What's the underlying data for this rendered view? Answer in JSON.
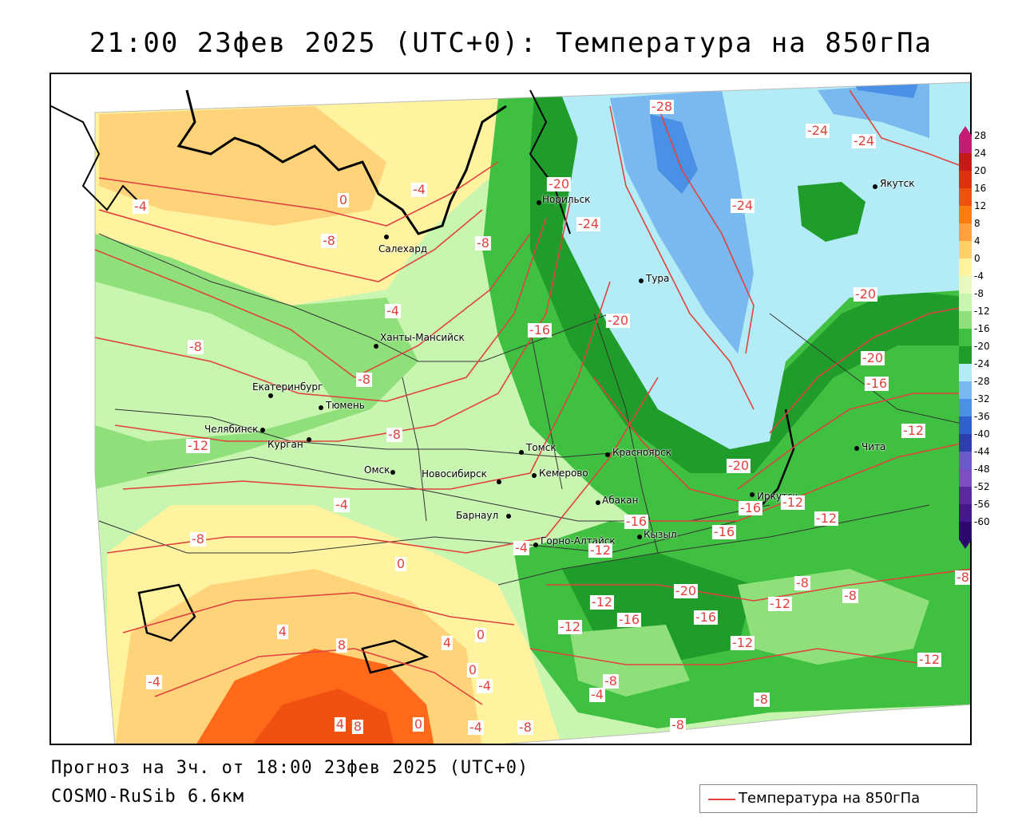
{
  "title": "21:00 23фев 2025 (UTC+0): Температура на 850гПа",
  "footer": {
    "forecast": "Прогноз на 3ч. от 18:00 23фев 2025 (UTC+0)",
    "model": "COSMO-RuSib 6.6км"
  },
  "legend": {
    "label": "Температура на 850гПа",
    "line_color": "#e0433e"
  },
  "colors": {
    "contour": "#e0433e",
    "warm_orange": "#ff6a1a",
    "warm_light": "#ffd37a",
    "neutral_yellow": "#fff3a0",
    "green_light": "#c8f5b0",
    "green_mid": "#6fd66a",
    "green_dark": "#1f9c2a",
    "cold_light": "#b3ecf7",
    "cold_mid": "#7ab8f0",
    "cold_dark": "#3a7fe0"
  },
  "scale": {
    "ticks": [
      "28",
      "24",
      "20",
      "16",
      "12",
      "8",
      "4",
      "0",
      "-4",
      "-8",
      "-12",
      "-16",
      "-20",
      "-24",
      "-28",
      "-32",
      "-36",
      "-40",
      "-44",
      "-48",
      "-52",
      "-56",
      "-60"
    ],
    "colors": [
      "#c21d70",
      "#c81818",
      "#e03010",
      "#f05010",
      "#ff7a10",
      "#ffa040",
      "#ffd06a",
      "#fff3a0",
      "#e8f9c0",
      "#c8f5b0",
      "#8fe07a",
      "#3fc040",
      "#1f9c2a",
      "#b3ecf7",
      "#7ab8f0",
      "#4a90e6",
      "#3060d0",
      "#2d3fb0",
      "#6a5acd",
      "#7d4fc6",
      "#5a2aa0",
      "#43188a",
      "#2b0a6b"
    ]
  },
  "cities": [
    {
      "name": "Норильск"
    },
    {
      "name": "Якутск"
    },
    {
      "name": "Салехард"
    },
    {
      "name": "Тура"
    },
    {
      "name": "Ханты-Мансийск"
    },
    {
      "name": "Екатеринбург"
    },
    {
      "name": "Тюмень"
    },
    {
      "name": "Челябинск"
    },
    {
      "name": "Курган"
    },
    {
      "name": "Омск"
    },
    {
      "name": "Новосибирск"
    },
    {
      "name": "Томск"
    },
    {
      "name": "Кемерово"
    },
    {
      "name": "Красноярск"
    },
    {
      "name": "Барнаул"
    },
    {
      "name": "Абакан"
    },
    {
      "name": "Горно-Алтайск"
    },
    {
      "name": "Кызыл"
    },
    {
      "name": "Иркутск"
    },
    {
      "name": "Чита"
    }
  ],
  "isolines": [
    "-28",
    "-24",
    "-24",
    "0",
    "-4",
    "-20",
    "-24",
    "-4",
    "-8",
    "-8",
    "-24",
    "-20",
    "-4",
    "-16",
    "-20",
    "-20",
    "-8",
    "-16",
    "-8",
    "-8",
    "-12",
    "-12",
    "-20",
    "-16",
    "-12",
    "-12",
    "-4",
    "-16",
    "-16",
    "-8",
    "-4",
    "-12",
    "0",
    "-12",
    "-16",
    "-20",
    "-16",
    "-12",
    "-8",
    "-12",
    "-8",
    "4",
    "4",
    "0",
    "8",
    "-4",
    "-12",
    "-8",
    "-4",
    "-8",
    "-4",
    "0",
    "-4",
    "-8",
    "-8",
    "4",
    "8",
    "0",
    "-12",
    "-8"
  ]
}
